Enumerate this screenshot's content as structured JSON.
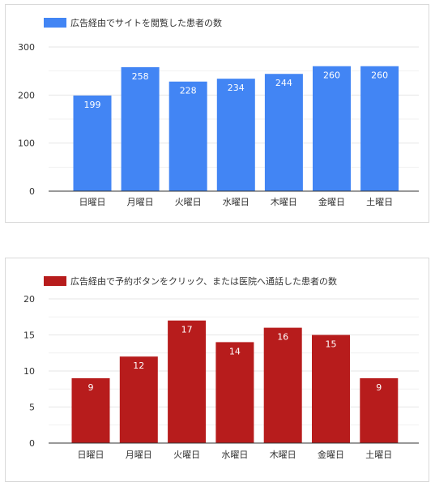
{
  "chart_data": [
    {
      "type": "bar",
      "categories": [
        "日曜日",
        "月曜日",
        "火曜日",
        "水曜日",
        "木曜日",
        "金曜日",
        "土曜日"
      ],
      "series": [
        {
          "name": "広告経由でサイトを閲覧した患者の数",
          "values": [
            199,
            258,
            228,
            234,
            244,
            260,
            260
          ],
          "color": "#4285f4"
        }
      ],
      "yticks": [
        0,
        100,
        200,
        300
      ],
      "ylim": [
        0,
        300
      ],
      "legend_position": "top-left",
      "grid": true,
      "data_labels": true
    },
    {
      "type": "bar",
      "categories": [
        "日曜日",
        "月曜日",
        "火曜日",
        "水曜日",
        "木曜日",
        "金曜日",
        "土曜日"
      ],
      "series": [
        {
          "name": "広告経由で予約ボタンをクリック、または医院へ通話した患者の数",
          "values": [
            9,
            12,
            17,
            14,
            16,
            15,
            9
          ],
          "color": "#b71c1c"
        }
      ],
      "yticks": [
        0,
        5,
        10,
        15,
        20
      ],
      "ylim": [
        0,
        20
      ],
      "legend_position": "top-left",
      "grid": true,
      "data_labels": true
    }
  ]
}
